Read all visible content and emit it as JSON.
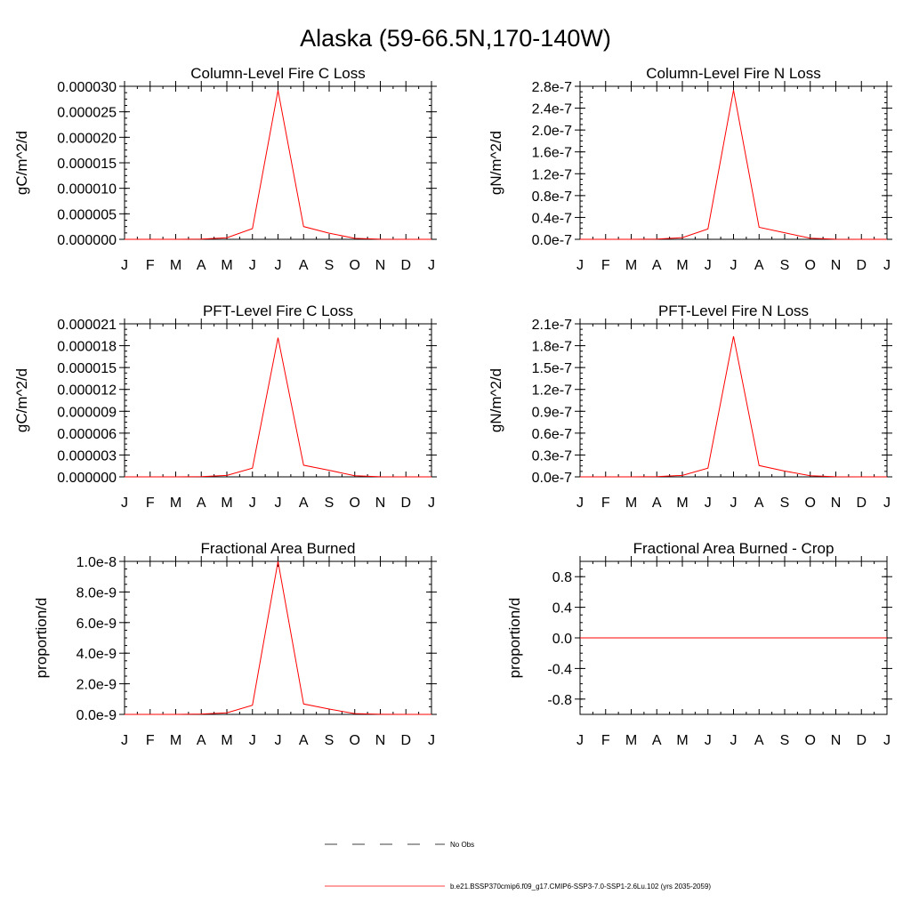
{
  "figure": {
    "title": "Alaska (59-66.5N,170-140W)",
    "series_color": "#ff0000",
    "axis_color": "#000000"
  },
  "legend": {
    "items": [
      {
        "label": "No Obs",
        "style": "dashed",
        "color": "#000000"
      },
      {
        "label": "b.e21.BSSP370cmip6.f09_g17.CMIP6-SSP3-7.0-SSP1-2.6Lu.102 (yrs 2035-2059)",
        "style": "solid",
        "color": "#ff0000"
      }
    ]
  },
  "chart_data": [
    {
      "type": "line",
      "title": "Column-Level Fire C Loss",
      "xlabel": "",
      "ylabel": "gC/m^2/d",
      "x_tick_labels": [
        "J",
        "F",
        "M",
        "A",
        "M",
        "J",
        "J",
        "A",
        "S",
        "O",
        "N",
        "D",
        "J"
      ],
      "y_ticks": [
        0,
        5e-06,
        1e-05,
        1.5e-05,
        2e-05,
        2.5e-05,
        3e-05
      ],
      "y_tick_labels": [
        "0.000000",
        "0.000005",
        "0.000010",
        "0.000015",
        "0.000020",
        "0.000025",
        "0.000030"
      ],
      "ylim": [
        0,
        3e-05
      ],
      "series": [
        {
          "color": "#ff0000",
          "values": [
            0,
            0,
            0,
            5e-08,
            3e-07,
            2.1e-06,
            2.92e-05,
            2.5e-06,
            1.2e-06,
            2e-07,
            2e-08,
            0,
            0
          ]
        }
      ]
    },
    {
      "type": "line",
      "title": "Column-Level Fire N Loss",
      "xlabel": "",
      "ylabel": "gN/m^2/d",
      "x_tick_labels": [
        "J",
        "F",
        "M",
        "A",
        "M",
        "J",
        "J",
        "A",
        "S",
        "O",
        "N",
        "D",
        "J"
      ],
      "y_ticks": [
        0,
        4e-08,
        8e-08,
        1.2e-07,
        1.6e-07,
        2e-07,
        2.4e-07,
        2.8e-07
      ],
      "y_tick_labels": [
        "0.0e-7",
        "0.4e-7",
        "0.8e-7",
        "1.2e-7",
        "1.6e-7",
        "2.0e-7",
        "2.4e-7",
        "2.8e-7"
      ],
      "ylim": [
        0,
        2.8e-07
      ],
      "series": [
        {
          "color": "#ff0000",
          "values": [
            0,
            0,
            0,
            5e-10,
            3e-09,
            1.9e-08,
            2.73e-07,
            2.2e-08,
            1.2e-08,
            2e-09,
            2e-10,
            0,
            0
          ]
        }
      ]
    },
    {
      "type": "line",
      "title": "PFT-Level Fire C Loss",
      "xlabel": "",
      "ylabel": "gC/m^2/d",
      "x_tick_labels": [
        "J",
        "F",
        "M",
        "A",
        "M",
        "J",
        "J",
        "A",
        "S",
        "O",
        "N",
        "D",
        "J"
      ],
      "y_ticks": [
        0,
        3e-06,
        6e-06,
        9e-06,
        1.2e-05,
        1.5e-05,
        1.8e-05,
        2.1e-05
      ],
      "y_tick_labels": [
        "0.000000",
        "0.000003",
        "0.000006",
        "0.000009",
        "0.000012",
        "0.000015",
        "0.000018",
        "0.000021"
      ],
      "ylim": [
        0,
        2.1e-05
      ],
      "series": [
        {
          "color": "#ff0000",
          "values": [
            0,
            0,
            0,
            3e-08,
            2e-07,
            1.2e-06,
            1.91e-05,
            1.6e-06,
            9e-07,
            1.5e-07,
            2e-08,
            0,
            0
          ]
        }
      ]
    },
    {
      "type": "line",
      "title": "PFT-Level Fire N Loss",
      "xlabel": "",
      "ylabel": "gN/m^2/d",
      "x_tick_labels": [
        "J",
        "F",
        "M",
        "A",
        "M",
        "J",
        "J",
        "A",
        "S",
        "O",
        "N",
        "D",
        "J"
      ],
      "y_ticks": [
        0,
        3e-08,
        6e-08,
        9e-08,
        1.2e-07,
        1.5e-07,
        1.8e-07,
        2.1e-07
      ],
      "y_tick_labels": [
        "0.0e-7",
        "0.3e-7",
        "0.6e-7",
        "0.9e-7",
        "1.2e-7",
        "1.5e-7",
        "1.8e-7",
        "2.1e-7"
      ],
      "ylim": [
        0,
        2.1e-07
      ],
      "series": [
        {
          "color": "#ff0000",
          "values": [
            0,
            0,
            0,
            3e-10,
            2e-09,
            1.2e-08,
            1.93e-07,
            1.55e-08,
            8e-09,
            1.5e-09,
            2e-10,
            0,
            0
          ]
        }
      ]
    },
    {
      "type": "line",
      "title": "Fractional Area Burned",
      "xlabel": "",
      "ylabel": "proportion/d",
      "x_tick_labels": [
        "J",
        "F",
        "M",
        "A",
        "M",
        "J",
        "J",
        "A",
        "S",
        "O",
        "N",
        "D",
        "J"
      ],
      "y_ticks": [
        0,
        2e-09,
        4e-09,
        6e-09,
        8e-09,
        1e-08
      ],
      "y_tick_labels": [
        "0.0e-9",
        "2.0e-9",
        "4.0e-9",
        "6.0e-9",
        "8.0e-9",
        "1.0e-8"
      ],
      "ylim": [
        0,
        1e-08
      ],
      "series": [
        {
          "color": "#ff0000",
          "values": [
            0,
            0,
            0,
            2e-11,
            1e-10,
            6e-10,
            1e-08,
            6.8e-10,
            3.5e-10,
            5e-11,
            1e-11,
            0,
            0
          ]
        }
      ]
    },
    {
      "type": "line",
      "title": "Fractional Area Burned - Crop",
      "xlabel": "",
      "ylabel": "proportion/d",
      "x_tick_labels": [
        "J",
        "F",
        "M",
        "A",
        "M",
        "J",
        "J",
        "A",
        "S",
        "O",
        "N",
        "D",
        "J"
      ],
      "y_ticks": [
        -0.8,
        -0.4,
        0,
        0.4,
        0.8
      ],
      "y_tick_labels": [
        "-0.8",
        "-0.4",
        "0.0",
        "0.4",
        "0.8"
      ],
      "ylim": [
        -1,
        1
      ],
      "series": [
        {
          "color": "#ff0000",
          "values": [
            0,
            0,
            0,
            0,
            0,
            0,
            0,
            0,
            0,
            0,
            0,
            0,
            0
          ]
        }
      ]
    }
  ]
}
